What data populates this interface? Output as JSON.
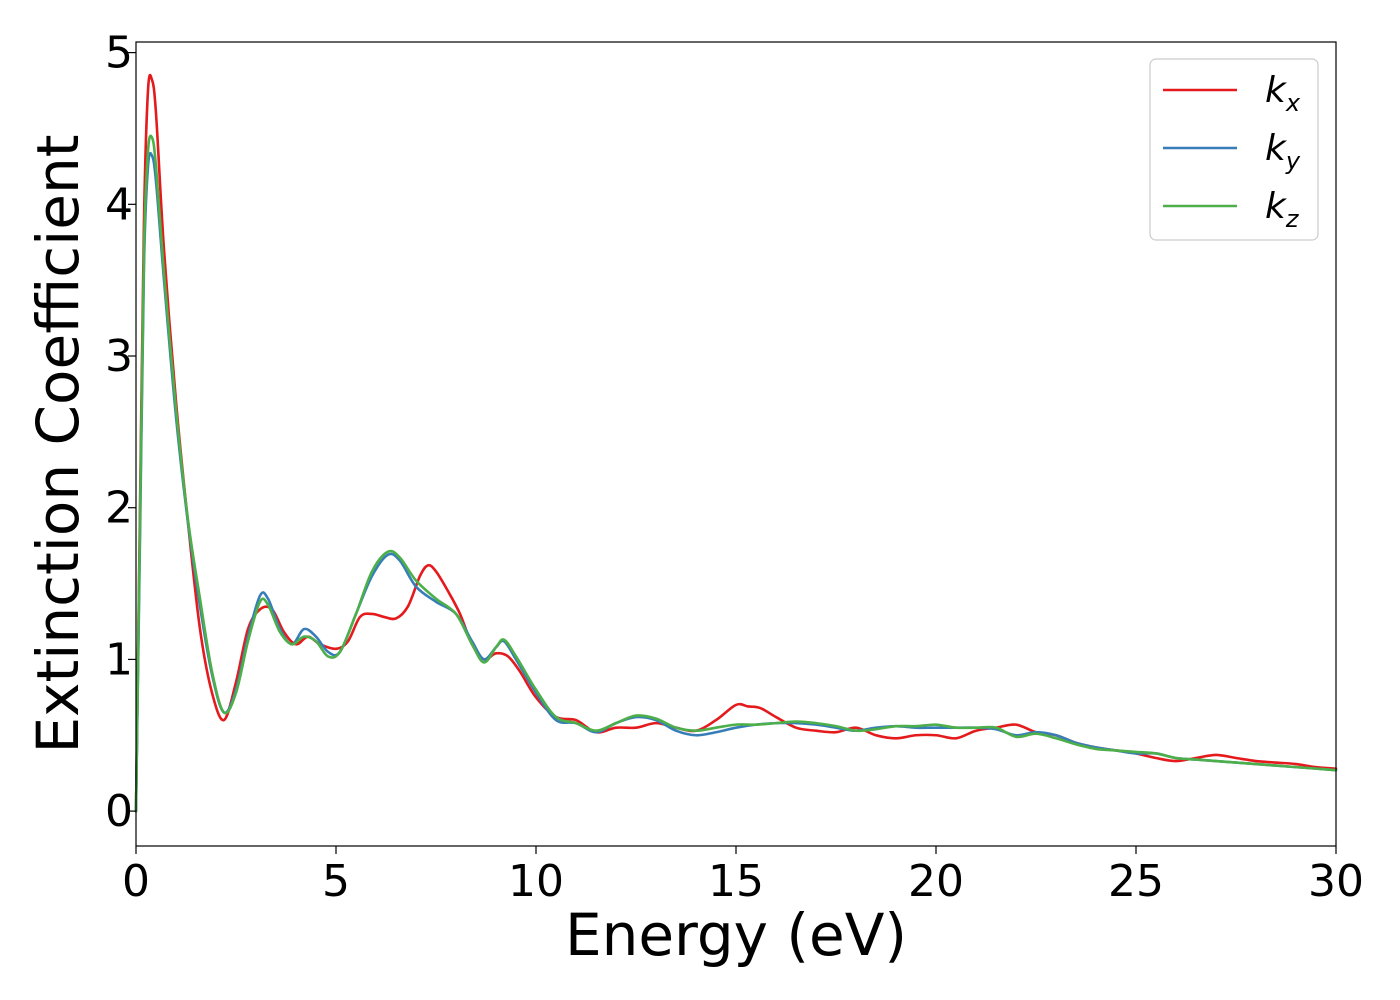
{
  "chart_data": {
    "type": "line",
    "title": "",
    "xlabel": "Energy (eV)",
    "ylabel": "Extinction Coefficient",
    "xlim": [
      0,
      30
    ],
    "ylim": [
      -0.23,
      5.07
    ],
    "xticks": [
      0,
      5,
      10,
      15,
      20,
      25,
      30
    ],
    "yticks": [
      0,
      1,
      2,
      3,
      4,
      5
    ],
    "grid": false,
    "legend_position": "top-right",
    "series": [
      {
        "name": "k",
        "subscript": "x",
        "color": "#e41a1c",
        "x": [
          0,
          0.1,
          0.2,
          0.3,
          0.4,
          0.5,
          0.7,
          1.0,
          1.3,
          1.6,
          1.9,
          2.2,
          2.5,
          2.8,
          3.1,
          3.4,
          3.7,
          4.0,
          4.3,
          4.6,
          5.0,
          5.3,
          5.6,
          5.9,
          6.2,
          6.5,
          6.8,
          7.1,
          7.3,
          7.5,
          7.8,
          8.1,
          8.4,
          8.7,
          9.0,
          9.3,
          9.6,
          10.0,
          10.5,
          11.0,
          11.5,
          12.0,
          12.5,
          13.0,
          13.5,
          14.0,
          14.5,
          15.0,
          15.3,
          15.6,
          16.0,
          16.5,
          17.0,
          17.5,
          18.0,
          18.5,
          19.0,
          19.5,
          20.0,
          20.5,
          21.0,
          21.5,
          22.0,
          22.5,
          23.0,
          23.5,
          24.0,
          24.5,
          25.0,
          25.5,
          26.0,
          26.5,
          27.0,
          27.5,
          28.0,
          28.5,
          29.0,
          29.5,
          30.0
        ],
        "y": [
          0,
          2.0,
          3.9,
          4.75,
          4.82,
          4.6,
          3.7,
          2.7,
          1.9,
          1.2,
          0.78,
          0.6,
          0.85,
          1.2,
          1.33,
          1.33,
          1.18,
          1.1,
          1.15,
          1.1,
          1.07,
          1.12,
          1.28,
          1.3,
          1.28,
          1.27,
          1.35,
          1.55,
          1.62,
          1.58,
          1.45,
          1.3,
          1.1,
          1.0,
          1.04,
          1.02,
          0.92,
          0.75,
          0.62,
          0.6,
          0.52,
          0.55,
          0.55,
          0.58,
          0.55,
          0.53,
          0.6,
          0.7,
          0.69,
          0.68,
          0.62,
          0.55,
          0.53,
          0.52,
          0.55,
          0.5,
          0.48,
          0.5,
          0.5,
          0.48,
          0.53,
          0.55,
          0.57,
          0.52,
          0.5,
          0.45,
          0.42,
          0.4,
          0.38,
          0.35,
          0.33,
          0.35,
          0.37,
          0.35,
          0.33,
          0.32,
          0.31,
          0.29,
          0.28
        ]
      },
      {
        "name": "k",
        "subscript": "y",
        "color": "#377eb8",
        "x": [
          0,
          0.1,
          0.2,
          0.3,
          0.4,
          0.5,
          0.7,
          1.0,
          1.3,
          1.6,
          1.9,
          2.2,
          2.5,
          2.8,
          3.1,
          3.3,
          3.6,
          3.9,
          4.2,
          4.5,
          4.8,
          5.1,
          5.5,
          5.9,
          6.3,
          6.6,
          7.0,
          7.5,
          8.0,
          8.4,
          8.7,
          9.0,
          9.2,
          9.5,
          10.0,
          10.5,
          11.0,
          11.5,
          12.0,
          12.5,
          13.0,
          13.5,
          14.0,
          14.5,
          15.0,
          15.5,
          16.0,
          16.5,
          17.0,
          17.5,
          18.0,
          18.5,
          19.0,
          19.5,
          20.0,
          20.5,
          21.0,
          21.5,
          22.0,
          22.5,
          23.0,
          23.5,
          24.0,
          24.5,
          25.0,
          25.5,
          26.0,
          26.5,
          27.0,
          27.5,
          28.0,
          28.5,
          29.0,
          29.5,
          30.0
        ],
        "y": [
          0,
          1.8,
          3.6,
          4.25,
          4.32,
          4.15,
          3.5,
          2.6,
          1.9,
          1.35,
          0.9,
          0.65,
          0.8,
          1.15,
          1.42,
          1.4,
          1.2,
          1.1,
          1.2,
          1.15,
          1.05,
          1.05,
          1.3,
          1.55,
          1.69,
          1.65,
          1.48,
          1.38,
          1.3,
          1.12,
          1.0,
          1.08,
          1.12,
          1.0,
          0.78,
          0.6,
          0.58,
          0.52,
          0.58,
          0.62,
          0.6,
          0.53,
          0.5,
          0.52,
          0.55,
          0.57,
          0.58,
          0.58,
          0.57,
          0.55,
          0.53,
          0.55,
          0.56,
          0.55,
          0.55,
          0.55,
          0.55,
          0.54,
          0.5,
          0.52,
          0.5,
          0.45,
          0.42,
          0.4,
          0.38,
          0.38,
          0.35,
          0.34,
          0.33,
          0.32,
          0.31,
          0.3,
          0.29,
          0.28,
          0.27
        ]
      },
      {
        "name": "k",
        "subscript": "z",
        "color": "#4daf4a",
        "x": [
          0,
          0.1,
          0.2,
          0.3,
          0.4,
          0.5,
          0.7,
          1.0,
          1.3,
          1.6,
          1.9,
          2.2,
          2.5,
          2.8,
          3.1,
          3.3,
          3.6,
          3.9,
          4.2,
          4.5,
          4.8,
          5.1,
          5.5,
          5.9,
          6.3,
          6.6,
          7.0,
          7.5,
          8.0,
          8.4,
          8.7,
          9.0,
          9.2,
          9.5,
          10.0,
          10.5,
          11.0,
          11.5,
          12.0,
          12.5,
          13.0,
          13.5,
          14.0,
          14.5,
          15.0,
          15.5,
          16.0,
          16.5,
          17.0,
          17.5,
          18.0,
          18.5,
          19.0,
          19.5,
          20.0,
          20.5,
          21.0,
          21.5,
          22.0,
          22.5,
          23.0,
          23.5,
          24.0,
          24.5,
          25.0,
          25.5,
          26.0,
          26.5,
          27.0,
          27.5,
          28.0,
          28.5,
          29.0,
          29.5,
          30.0
        ],
        "y": [
          0,
          1.9,
          3.7,
          4.35,
          4.44,
          4.25,
          3.55,
          2.65,
          1.92,
          1.4,
          0.92,
          0.65,
          0.78,
          1.12,
          1.38,
          1.36,
          1.18,
          1.1,
          1.15,
          1.12,
          1.02,
          1.05,
          1.3,
          1.58,
          1.71,
          1.67,
          1.52,
          1.4,
          1.3,
          1.1,
          0.98,
          1.08,
          1.13,
          1.02,
          0.8,
          0.62,
          0.58,
          0.53,
          0.58,
          0.63,
          0.61,
          0.55,
          0.53,
          0.55,
          0.57,
          0.57,
          0.58,
          0.59,
          0.58,
          0.56,
          0.53,
          0.54,
          0.56,
          0.56,
          0.57,
          0.55,
          0.55,
          0.55,
          0.49,
          0.51,
          0.48,
          0.44,
          0.41,
          0.4,
          0.39,
          0.38,
          0.35,
          0.34,
          0.33,
          0.32,
          0.31,
          0.3,
          0.29,
          0.28,
          0.27
        ]
      }
    ]
  }
}
